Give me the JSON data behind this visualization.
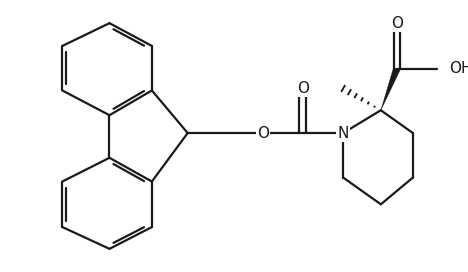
{
  "bg": "#ffffff",
  "lc": "#1a1a1a",
  "lw": 1.6,
  "fs": 11,
  "xlim": [
    0,
    9.5
  ],
  "ylim": [
    0.2,
    6.0
  ]
}
